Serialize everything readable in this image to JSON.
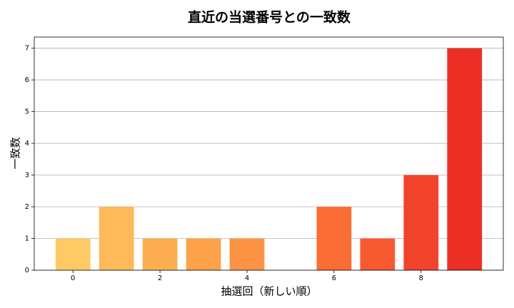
{
  "chart_data": {
    "type": "bar",
    "title": "直近の当選番号との一致数",
    "xlabel": "抽選回（新しい順）",
    "ylabel": "一致数",
    "x": [
      0,
      1,
      2,
      3,
      4,
      5,
      6,
      7,
      8,
      9
    ],
    "values": [
      1,
      2,
      1,
      1,
      1,
      0,
      2,
      1,
      3,
      7
    ],
    "colors": [
      "#fdca66",
      "#feb95a",
      "#fdae51",
      "#fda14b",
      "#fc9345",
      "#fb803c",
      "#fa6d35",
      "#f75a30",
      "#f2432b",
      "#ec2f25"
    ],
    "xlim": [
      -0.89,
      9.89
    ],
    "xticks": [
      0,
      2,
      4,
      6,
      8
    ],
    "ylim": [
      0,
      7.35
    ],
    "yticks": [
      0,
      1,
      2,
      3,
      4,
      5,
      6,
      7
    ],
    "grid": true
  }
}
